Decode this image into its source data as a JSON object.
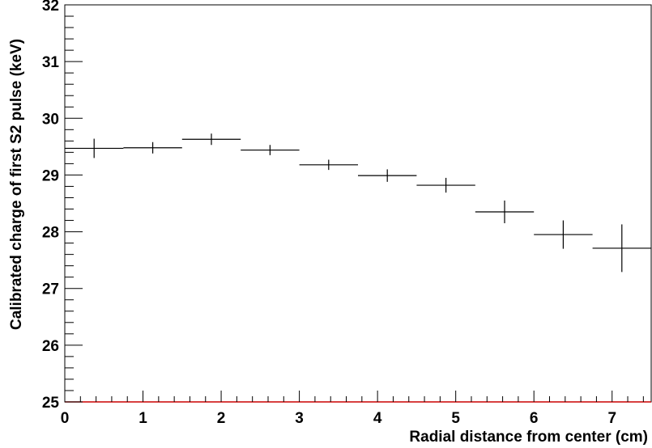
{
  "chart_data": {
    "type": "scatter",
    "title": "",
    "xlabel": "Radial distance from center (cm)",
    "ylabel": "Calibrated charge of first S2 pulse (keV)",
    "xlim": [
      0,
      7.5
    ],
    "ylim": [
      25,
      32
    ],
    "x_ticks": [
      "0",
      "1",
      "2",
      "3",
      "4",
      "5",
      "6",
      "7"
    ],
    "y_ticks": [
      "25",
      "26",
      "27",
      "28",
      "29",
      "30",
      "31",
      "32"
    ],
    "grid": false,
    "series": [
      {
        "points": [
          {
            "x": 0.375,
            "x_low": 0.0,
            "x_high": 0.75,
            "y": 29.47,
            "y_err": 0.17
          },
          {
            "x": 1.125,
            "x_low": 0.75,
            "x_high": 1.5,
            "y": 29.48,
            "y_err": 0.1
          },
          {
            "x": 1.875,
            "x_low": 1.5,
            "x_high": 2.25,
            "y": 29.63,
            "y_err": 0.1
          },
          {
            "x": 2.625,
            "x_low": 2.25,
            "x_high": 3.0,
            "y": 29.44,
            "y_err": 0.09
          },
          {
            "x": 3.375,
            "x_low": 3.0,
            "x_high": 3.75,
            "y": 29.18,
            "y_err": 0.09
          },
          {
            "x": 4.125,
            "x_low": 3.75,
            "x_high": 4.5,
            "y": 28.99,
            "y_err": 0.11
          },
          {
            "x": 4.875,
            "x_low": 4.5,
            "x_high": 5.25,
            "y": 28.82,
            "y_err": 0.13
          },
          {
            "x": 5.625,
            "x_low": 5.25,
            "x_high": 6.0,
            "y": 28.35,
            "y_err": 0.2
          },
          {
            "x": 6.375,
            "x_low": 6.0,
            "x_high": 6.75,
            "y": 27.95,
            "y_err": 0.25
          },
          {
            "x": 7.125,
            "x_low": 6.75,
            "x_high": 7.5,
            "y": 27.71,
            "y_err": 0.42
          }
        ]
      }
    ],
    "colors": {
      "markers": "#000000",
      "frame": "#000000",
      "baseline": "#cc0000"
    }
  }
}
